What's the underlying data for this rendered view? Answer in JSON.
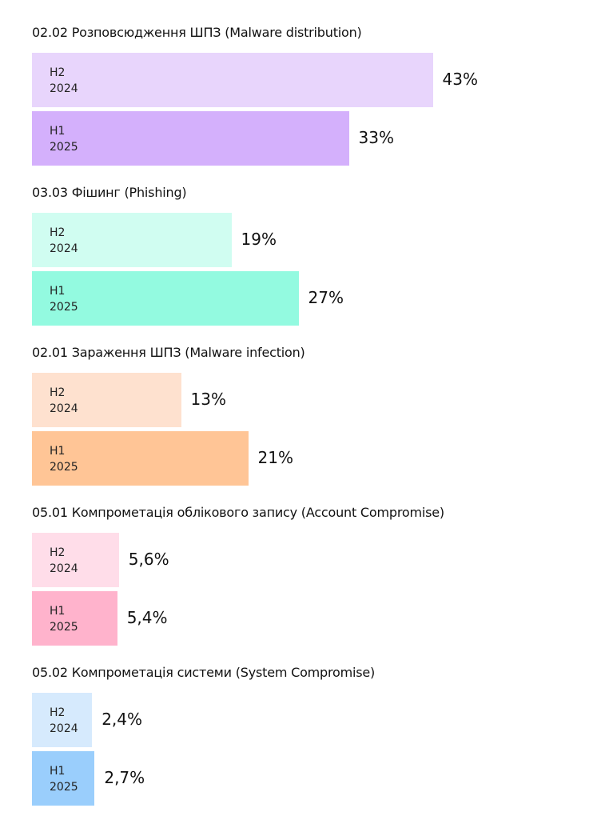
{
  "chart_data": {
    "type": "bar",
    "orientation": "horizontal",
    "unit": "%",
    "series_labels": [
      {
        "period": "H2",
        "year": "2024"
      },
      {
        "period": "H1",
        "year": "2025"
      }
    ],
    "groups": [
      {
        "title": "02.02 Розповсюдження ШПЗ (Malware distribution)",
        "values": [
          43,
          33
        ],
        "labels": [
          "43%",
          "33%"
        ],
        "colors": [
          "#e8d5fc",
          "#d4b0fc"
        ]
      },
      {
        "title": "03.03 Фішинг (Phishing)",
        "values": [
          19,
          27
        ],
        "labels": [
          "19%",
          "27%"
        ],
        "colors": [
          "#d0fdf1",
          "#93fae0"
        ]
      },
      {
        "title": "02.01 Зараження ШПЗ (Malware infection)",
        "values": [
          13,
          21
        ],
        "labels": [
          "13%",
          "21%"
        ],
        "colors": [
          "#fee1cf",
          "#ffc596"
        ]
      },
      {
        "title": "05.01 Компрометація облікового запису (Account Compromise)",
        "values": [
          5.6,
          5.4
        ],
        "labels": [
          "5,6%",
          "5,4%"
        ],
        "colors": [
          "#ffdde9",
          "#ffb3cc"
        ]
      },
      {
        "title": "05.02 Компрометація системи (System Compromise)",
        "values": [
          2.4,
          2.7
        ],
        "labels": [
          "2,4%",
          "2,7%"
        ],
        "colors": [
          "#d6eafd",
          "#9acefc"
        ]
      }
    ]
  }
}
